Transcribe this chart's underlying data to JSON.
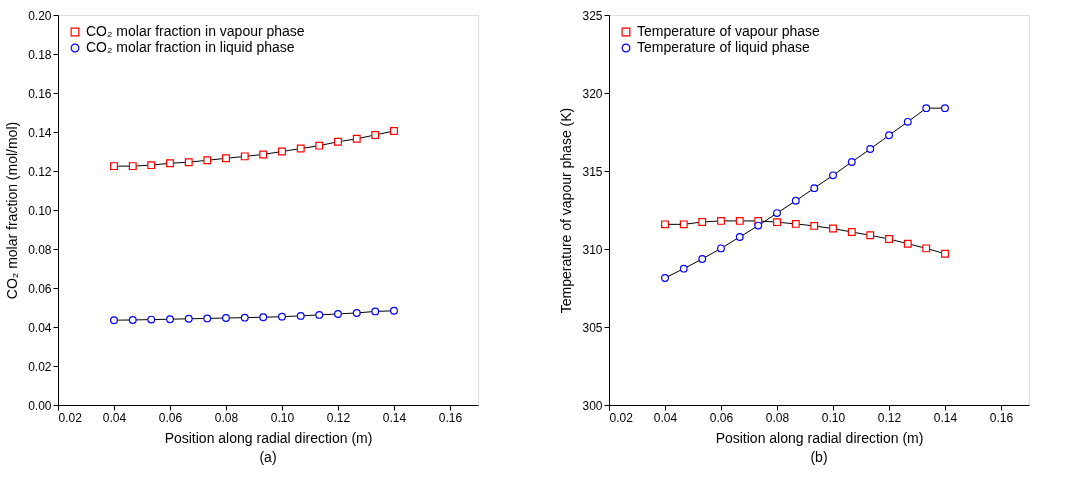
{
  "chart_data": [
    {
      "type": "line",
      "xlabel": "Position along radial direction (m)",
      "ylabel": "CO₂ molar fraction (mol/mol)",
      "annotations": [
        "(a)"
      ],
      "legend": "top left",
      "grid": false,
      "line_style": "solid",
      "x": [
        0.04,
        0.0467,
        0.0533,
        0.06,
        0.0667,
        0.0733,
        0.08,
        0.0867,
        0.0933,
        0.1,
        0.1067,
        0.1133,
        0.12,
        0.1267,
        0.1333,
        0.14
      ],
      "xlim": [
        0.02,
        0.17
      ],
      "xticks": [
        {
          "value": 0.02,
          "label": "0.02"
        },
        {
          "value": 0.04,
          "label": "0.04"
        },
        {
          "value": 0.06,
          "label": "0.06"
        },
        {
          "value": 0.08,
          "label": "0.08"
        },
        {
          "value": 0.1,
          "label": "0.10"
        },
        {
          "value": 0.12,
          "label": "0.12"
        },
        {
          "value": 0.14,
          "label": "0.14"
        },
        {
          "value": 0.16,
          "label": "0.16"
        }
      ],
      "ylim": [
        0,
        0.2
      ],
      "yticks": [
        {
          "value": 0,
          "label": "0.00"
        },
        {
          "value": 0.02,
          "label": "0.02"
        },
        {
          "value": 0.04,
          "label": "0.04"
        },
        {
          "value": 0.06,
          "label": "0.06"
        },
        {
          "value": 0.08,
          "label": "0.08"
        },
        {
          "value": 0.1,
          "label": "0.10"
        },
        {
          "value": 0.12,
          "label": "0.12"
        },
        {
          "value": 0.14,
          "label": "0.14"
        },
        {
          "value": 0.16,
          "label": "0.16"
        },
        {
          "value": 0.18,
          "label": "0.18"
        },
        {
          "value": 0.2,
          "label": "0.20"
        }
      ],
      "series": [
        {
          "name": "CO₂ molar fraction in  vapour phase",
          "color": "#ff0000",
          "marker": "square",
          "values": [
            0.1225,
            0.1225,
            0.123,
            0.124,
            0.1245,
            0.1255,
            0.1265,
            0.1275,
            0.1285,
            0.13,
            0.1315,
            0.133,
            0.135,
            0.1365,
            0.1385,
            0.1405
          ]
        },
        {
          "name": "CO₂ molar fraction in  liquid phase",
          "color": "#0000ff",
          "marker": "circle",
          "values": [
            0.0435,
            0.0436,
            0.0438,
            0.044,
            0.0442,
            0.0444,
            0.0446,
            0.0448,
            0.045,
            0.0453,
            0.0457,
            0.0462,
            0.0467,
            0.0472,
            0.048,
            0.0483
          ]
        }
      ]
    },
    {
      "type": "line",
      "xlabel": "Position along radial direction (m)",
      "ylabel": "Temperature of vapour phase (K)",
      "annotations": [
        "(b)"
      ],
      "legend": "top left",
      "grid": false,
      "line_style": "solid",
      "x": [
        0.04,
        0.0467,
        0.0533,
        0.06,
        0.0667,
        0.0733,
        0.08,
        0.0867,
        0.0933,
        0.1,
        0.1067,
        0.1133,
        0.12,
        0.1267,
        0.1333,
        0.14
      ],
      "xlim": [
        0.02,
        0.17
      ],
      "xticks": [
        {
          "value": 0.02,
          "label": "0.02"
        },
        {
          "value": 0.04,
          "label": "0.04"
        },
        {
          "value": 0.06,
          "label": "0.06"
        },
        {
          "value": 0.08,
          "label": "0.08"
        },
        {
          "value": 0.1,
          "label": "0.10"
        },
        {
          "value": 0.12,
          "label": "0.12"
        },
        {
          "value": 0.14,
          "label": "0.14"
        },
        {
          "value": 0.16,
          "label": "0.16"
        }
      ],
      "ylim": [
        300,
        325
      ],
      "yticks": [
        300,
        305,
        310,
        315,
        320,
        325
      ],
      "series": [
        {
          "name": "Temperature of vapour phase",
          "color": "#ff0000",
          "marker": "square",
          "values": [
            311.58,
            311.58,
            311.73,
            311.8,
            311.8,
            311.8,
            311.72,
            311.61,
            311.48,
            311.31,
            311.09,
            310.88,
            310.64,
            310.34,
            310.04,
            309.7
          ]
        },
        {
          "name": "Temperature of liquid phase",
          "color": "#0000ff",
          "marker": "circle",
          "values": [
            308.14,
            308.74,
            309.36,
            310.04,
            310.77,
            311.5,
            312.3,
            313.09,
            313.9,
            314.72,
            315.58,
            316.41,
            317.29,
            318.15,
            319.03,
            319.03
          ]
        }
      ]
    }
  ]
}
